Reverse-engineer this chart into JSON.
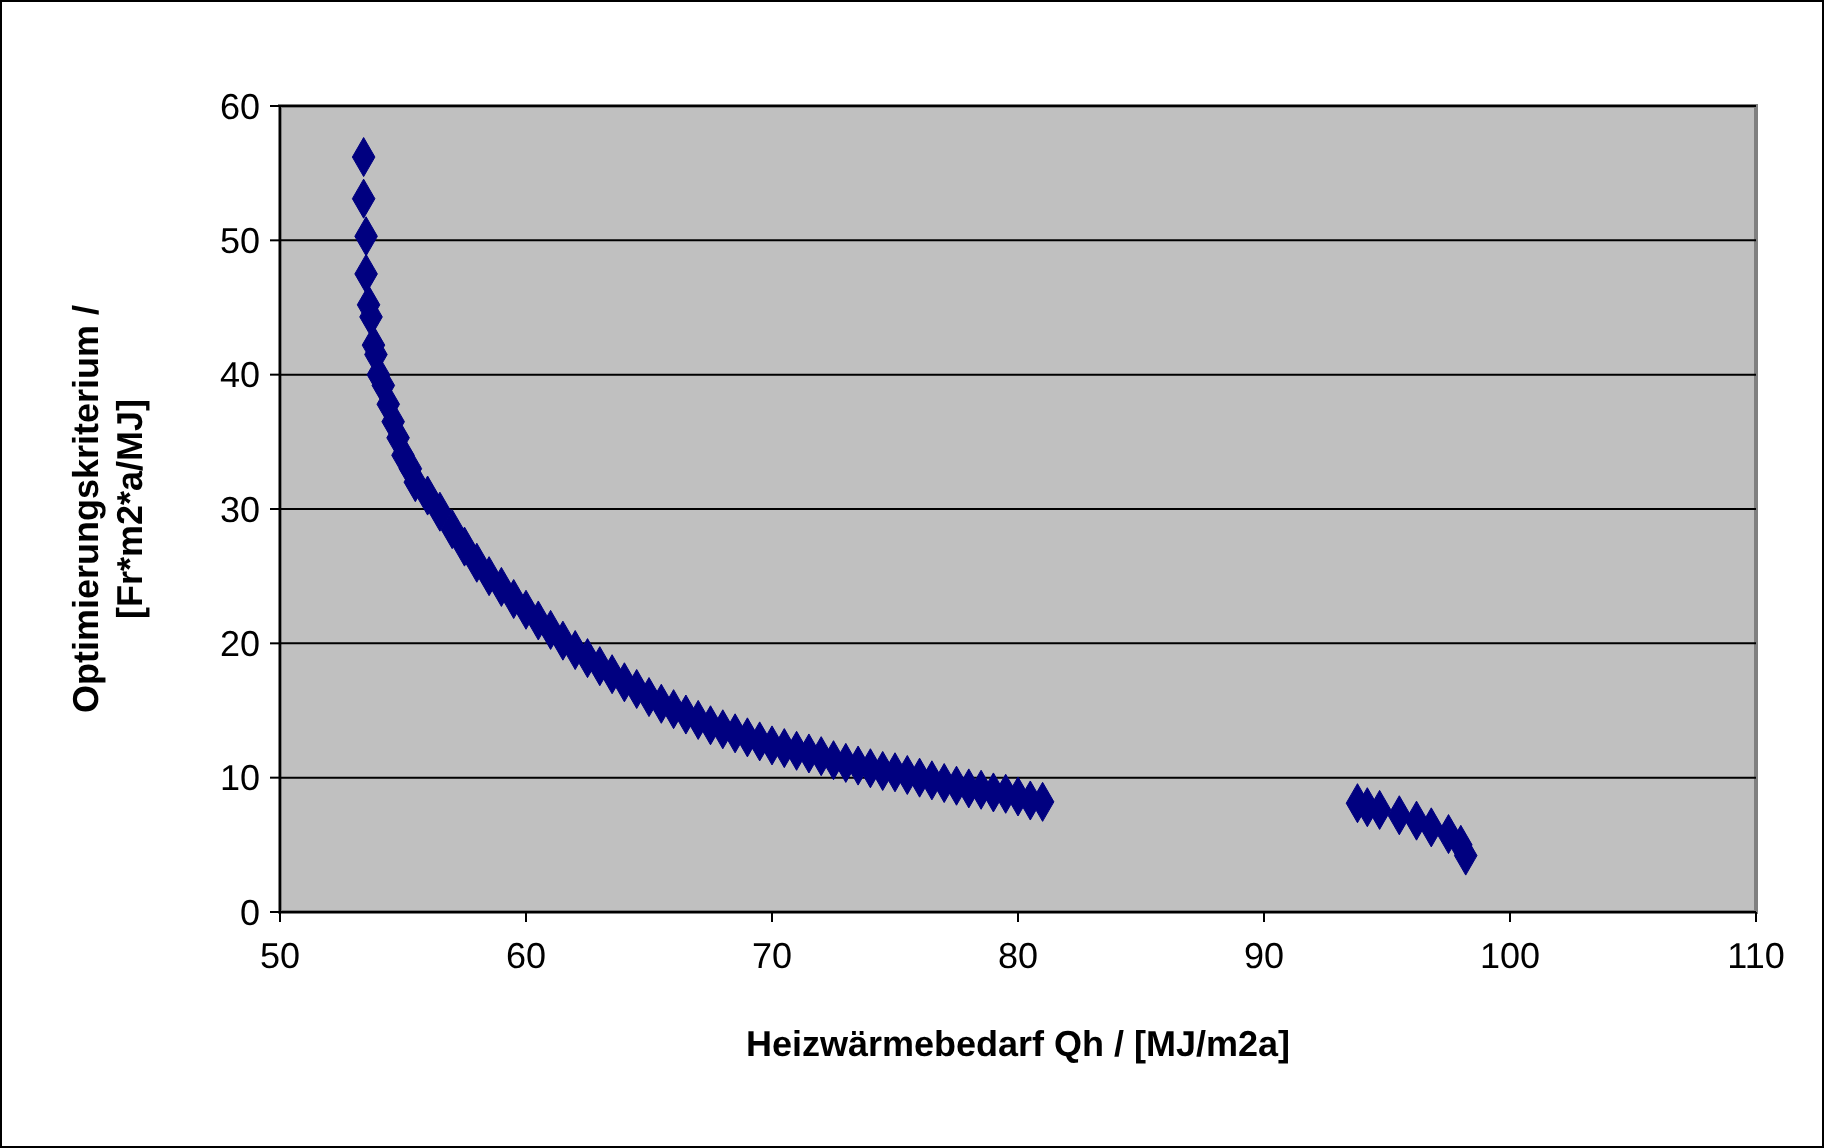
{
  "chart_data": {
    "type": "scatter",
    "xlabel": "Heizwärmebedarf Qh / [MJ/m2a]",
    "ylabel": "Optimierungskriterium / [Fr*m2*a/MJ]",
    "xlim": [
      50,
      110
    ],
    "xticks": [
      50,
      60,
      70,
      80,
      90,
      100,
      110
    ],
    "ylim": [
      0,
      60
    ],
    "yticks": [
      0,
      10,
      20,
      30,
      40,
      50,
      60
    ],
    "grid": "y",
    "marker": "diamond",
    "series": [
      {
        "color": "#000080",
        "x": [
          53.4,
          53.4,
          53.5,
          53.5,
          53.6,
          53.7,
          53.8,
          53.9,
          54.0,
          54.2,
          54.4,
          54.6,
          54.8,
          55.0,
          55.3,
          55.5,
          56.0,
          56.5,
          57.0,
          57.5,
          58.0,
          58.5,
          59.0,
          59.5,
          60.0,
          60.5,
          61.0,
          61.5,
          62.0,
          62.5,
          63.0,
          63.5,
          64.0,
          64.5,
          65.0,
          65.5,
          66.0,
          66.5,
          67.0,
          67.5,
          68.0,
          68.5,
          69.0,
          69.5,
          70.0,
          70.5,
          71.0,
          71.5,
          72.0,
          72.5,
          73.0,
          73.5,
          74.0,
          74.5,
          75.0,
          75.5,
          76.0,
          76.5,
          77.0,
          77.5,
          78.0,
          78.5,
          79.0,
          79.5,
          80.0,
          80.5,
          81.0,
          93.8,
          94.2,
          94.7,
          95.5,
          96.2,
          96.8,
          97.5,
          98.0,
          98.2
        ],
        "values": [
          56.2,
          53.1,
          50.3,
          47.5,
          45.2,
          44.3,
          42.2,
          41.5,
          40.0,
          39.2,
          37.8,
          36.5,
          35.3,
          34.0,
          33.0,
          32.0,
          31.0,
          29.8,
          28.5,
          27.2,
          26.0,
          25.0,
          24.2,
          23.3,
          22.5,
          21.7,
          21.0,
          20.2,
          19.5,
          18.9,
          18.3,
          17.7,
          17.1,
          16.6,
          16.0,
          15.5,
          15.1,
          14.7,
          14.3,
          13.9,
          13.6,
          13.3,
          13.0,
          12.7,
          12.4,
          12.2,
          12.0,
          11.8,
          11.6,
          11.3,
          11.1,
          10.9,
          10.7,
          10.5,
          10.4,
          10.2,
          10.0,
          9.8,
          9.6,
          9.4,
          9.2,
          9.1,
          8.9,
          8.8,
          8.6,
          8.3,
          8.2,
          8.1,
          7.8,
          7.6,
          7.2,
          6.8,
          6.3,
          5.8,
          5.0,
          4.2
        ]
      }
    ]
  }
}
